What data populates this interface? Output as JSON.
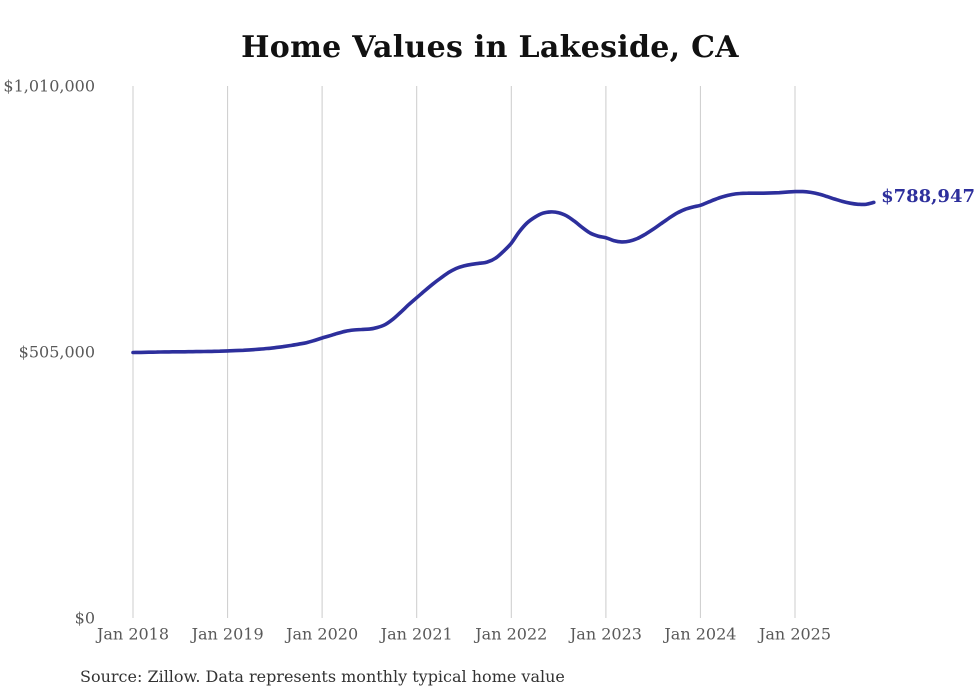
{
  "chart_data": {
    "type": "line",
    "title": "Home Values in Lakeside, CA",
    "xlabel": "",
    "ylabel": "",
    "ylim": [
      0,
      1010000
    ],
    "grid": "vertical-gridlines-only",
    "legend": "none",
    "frequency": "monthly",
    "x_start": "2018-01",
    "x_end": "2025-11",
    "line_color": "#2d2f9c",
    "gridline_color": "#cccccc",
    "tick_label_color": "#595959",
    "end_label": "$788,947",
    "end_value": 788947,
    "source": "Source: Zillow. Data represents monthly typical home value",
    "y_ticks": [
      {
        "label": "$1,010,000",
        "value": 1010000
      },
      {
        "label": "$505,000",
        "value": 505000
      },
      {
        "label": "$0",
        "value": 0
      }
    ],
    "x_ticks": [
      {
        "label": "Jan 2018",
        "month_index": 0
      },
      {
        "label": "Jan 2019",
        "month_index": 12
      },
      {
        "label": "Jan 2020",
        "month_index": 24
      },
      {
        "label": "Jan 2021",
        "month_index": 36
      },
      {
        "label": "Jan 2022",
        "month_index": 48
      },
      {
        "label": "Jan 2023",
        "month_index": 60
      },
      {
        "label": "Jan 2024",
        "month_index": 72
      },
      {
        "label": "Jan 2025",
        "month_index": 84
      }
    ],
    "series": [
      {
        "name": "Typical home value",
        "values": [
          504000,
          504300,
          504600,
          504900,
          505100,
          505300,
          505400,
          505500,
          505700,
          505900,
          506200,
          506600,
          507000,
          507600,
          508300,
          509200,
          510300,
          511600,
          513200,
          515100,
          517300,
          519800,
          522700,
          526800,
          531500,
          536000,
          540500,
          544500,
          546800,
          547800,
          548500,
          551500,
          557000,
          567500,
          581000,
          595000,
          608000,
          621000,
          633500,
          645000,
          655500,
          663500,
          668500,
          671500,
          673500,
          676000,
          683000,
          696000,
          711500,
          733000,
          750000,
          761000,
          768500,
          771000,
          769500,
          763500,
          753500,
          741500,
          731000,
          725000,
          722000,
          716500,
          714000,
          715500,
          720500,
          728500,
          738000,
          748500,
          759000,
          768500,
          775500,
          780000,
          783500,
          789500,
          795500,
          800500,
          804000,
          806000,
          806500,
          806500,
          806500,
          807000,
          807500,
          808500,
          809500,
          809500,
          808000,
          805000,
          800500,
          795500,
          791000,
          787500,
          785500,
          785500,
          788947
        ]
      }
    ]
  }
}
